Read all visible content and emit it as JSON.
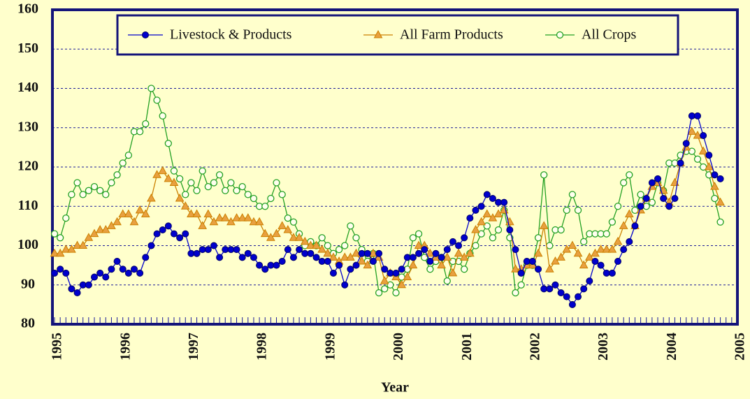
{
  "chart_data": {
    "type": "line",
    "x_label": "Year",
    "categories": [
      "1995",
      null,
      null,
      null,
      null,
      null,
      null,
      null,
      null,
      null,
      null,
      null,
      "1996",
      null,
      null,
      null,
      null,
      null,
      null,
      null,
      null,
      null,
      null,
      null,
      "1997",
      null,
      null,
      null,
      null,
      null,
      null,
      null,
      null,
      null,
      null,
      null,
      "1998",
      null,
      null,
      null,
      null,
      null,
      null,
      null,
      null,
      null,
      null,
      null,
      "1999",
      null,
      null,
      null,
      null,
      null,
      null,
      null,
      null,
      null,
      null,
      null,
      "2000",
      null,
      null,
      null,
      null,
      null,
      null,
      null,
      null,
      null,
      null,
      null,
      "2001",
      null,
      null,
      null,
      null,
      null,
      null,
      null,
      null,
      null,
      null,
      null,
      "2002",
      null,
      null,
      null,
      null,
      null,
      null,
      null,
      null,
      null,
      null,
      null,
      "2003",
      null,
      null,
      null,
      null,
      null,
      null,
      null,
      null,
      null,
      null,
      null,
      "2004",
      null,
      null,
      null,
      null,
      null,
      null,
      null,
      null,
      null,
      null,
      null,
      "2005"
    ],
    "series": [
      {
        "name": "Livestock & Products",
        "color": "#0000cc",
        "marker": "circle",
        "values": [
          93,
          94,
          93,
          89,
          88,
          90,
          90,
          92,
          93,
          92,
          94,
          96,
          94,
          93,
          94,
          93,
          97,
          100,
          103,
          104,
          105,
          103,
          102,
          103,
          98,
          98,
          99,
          99,
          100,
          97,
          99,
          99,
          99,
          97,
          98,
          97,
          95,
          94,
          95,
          95,
          96,
          99,
          97,
          99,
          98,
          98,
          97,
          96,
          96,
          93,
          95,
          90,
          94,
          95,
          98,
          98,
          96,
          98,
          94,
          93,
          93,
          94,
          97,
          97,
          98,
          99,
          96,
          98,
          97,
          99,
          101,
          100,
          102,
          107,
          109,
          110,
          113,
          112,
          111,
          111,
          104,
          99,
          93,
          96,
          96,
          94,
          89,
          89,
          90,
          88,
          87,
          85,
          87,
          89,
          91,
          96,
          95,
          93,
          93,
          96,
          99,
          101,
          105,
          110,
          112,
          116,
          117,
          112,
          110,
          112,
          121,
          126,
          133,
          133,
          128,
          123,
          118,
          117,
          null,
          null,
          null
        ]
      },
      {
        "name": "All Farm Products",
        "color": "#cc8000",
        "marker": "triangle",
        "values": [
          98,
          98,
          99,
          99,
          100,
          100,
          102,
          103,
          104,
          104,
          105,
          106,
          108,
          108,
          106,
          109,
          108,
          112,
          118,
          119,
          117,
          116,
          112,
          110,
          108,
          108,
          105,
          108,
          106,
          107,
          107,
          106,
          107,
          107,
          107,
          106,
          106,
          103,
          102,
          103,
          105,
          104,
          102,
          102,
          101,
          100,
          100,
          99,
          98,
          97,
          96,
          97,
          97,
          98,
          96,
          95,
          98,
          97,
          91,
          93,
          92,
          90,
          92,
          95,
          100,
          100,
          98,
          97,
          95,
          97,
          93,
          98,
          97,
          98,
          104,
          106,
          108,
          107,
          108,
          109,
          106,
          94,
          94,
          95,
          95,
          98,
          105,
          94,
          96,
          97,
          99,
          100,
          98,
          95,
          97,
          98,
          99,
          99,
          99,
          101,
          105,
          108,
          105,
          109,
          112,
          115,
          116,
          114,
          111,
          116,
          121,
          125,
          129,
          128,
          124,
          120,
          115,
          111,
          null,
          null,
          null
        ]
      },
      {
        "name": "All Crops",
        "color": "#22a022",
        "marker": "open-circle",
        "values": [
          103,
          102,
          107,
          113,
          116,
          113,
          114,
          115,
          114,
          113,
          116,
          118,
          121,
          123,
          129,
          129,
          131,
          140,
          137,
          133,
          126,
          119,
          117,
          113,
          116,
          114,
          119,
          115,
          116,
          118,
          114,
          116,
          114,
          115,
          113,
          112,
          110,
          110,
          112,
          116,
          113,
          107,
          106,
          103,
          100,
          101,
          100,
          102,
          100,
          98,
          99,
          100,
          105,
          102,
          99,
          96,
          98,
          88,
          89,
          90,
          88,
          92,
          94,
          102,
          103,
          97,
          94,
          96,
          97,
          91,
          96,
          96,
          94,
          98,
          100,
          103,
          105,
          102,
          104,
          109,
          102,
          88,
          90,
          95,
          95,
          102,
          118,
          100,
          104,
          104,
          109,
          113,
          109,
          101,
          103,
          103,
          103,
          103,
          106,
          110,
          116,
          118,
          109,
          113,
          110,
          111,
          116,
          114,
          121,
          121,
          123,
          124,
          124,
          122,
          120,
          118,
          112,
          106,
          null,
          null,
          null
        ]
      }
    ],
    "ylim": [
      80,
      160
    ],
    "yticks": [
      80,
      90,
      100,
      110,
      120,
      130,
      140,
      150,
      160
    ],
    "grid": true,
    "legend": "top"
  }
}
